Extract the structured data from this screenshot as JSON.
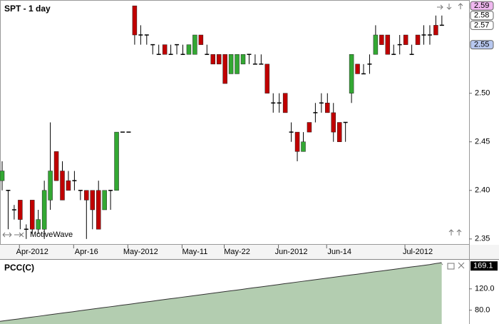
{
  "chart_data": [
    {
      "type": "candlestick",
      "title": "SPT - 1 day",
      "watermark": "MotiveWave",
      "categories": [
        null,
        null,
        null,
        null,
        null,
        "Apr-2012",
        null,
        null,
        null,
        null,
        null,
        null,
        null,
        null,
        "Apr-16",
        null,
        null,
        null,
        null,
        null,
        null,
        null,
        null,
        "May-2012",
        null,
        null,
        null,
        null,
        null,
        null,
        null,
        null,
        "May-11",
        null,
        null,
        null,
        null,
        null,
        null,
        "May-22",
        null,
        null,
        null,
        null,
        null,
        null,
        null,
        null,
        "Jun-2012",
        null,
        null,
        null,
        null,
        null,
        null,
        null,
        "Jun-14",
        null,
        null,
        null,
        null,
        null,
        null,
        null,
        null,
        null,
        null,
        null,
        null,
        "Jul-2012",
        null,
        null,
        null,
        null
      ],
      "open": [
        2.41,
        2.4,
        2.38,
        2.39,
        2.36,
        2.39,
        2.36,
        2.36,
        2.39,
        2.44,
        2.42,
        2.41,
        2.41,
        2.4,
        2.4,
        2.4,
        2.4,
        2.38,
        2.4,
        2.4,
        2.46,
        2.46,
        2.59,
        2.56,
        2.56,
        2.55,
        2.54,
        2.55,
        2.54,
        2.55,
        2.54,
        2.54,
        2.54,
        2.56,
        2.54,
        2.54,
        2.54,
        2.54,
        2.52,
        2.52,
        2.53,
        2.54,
        2.53,
        2.53,
        2.53,
        2.49,
        2.49,
        2.5,
        2.46,
        2.46,
        2.44,
        2.47,
        2.48,
        2.49,
        2.49,
        2.48,
        2.47,
        2.47,
        2.5,
        2.53,
        2.52,
        2.53,
        2.54,
        2.56,
        2.56,
        2.54,
        2.55,
        2.56,
        2.54,
        2.56,
        2.56,
        2.56,
        2.57,
        2.57
      ],
      "high": [
        2.43,
        2.4,
        2.385,
        2.39,
        2.365,
        2.39,
        2.38,
        2.41,
        2.47,
        2.44,
        2.43,
        2.42,
        2.42,
        2.4,
        2.4,
        2.4,
        2.41,
        2.4,
        2.4,
        2.46,
        2.46,
        2.46,
        2.59,
        2.57,
        2.56,
        2.55,
        2.55,
        2.55,
        2.55,
        2.55,
        2.55,
        2.55,
        2.56,
        2.56,
        2.55,
        2.54,
        2.54,
        2.54,
        2.54,
        2.54,
        2.54,
        2.54,
        2.54,
        2.54,
        2.53,
        2.5,
        2.5,
        2.5,
        2.47,
        2.46,
        2.46,
        2.47,
        2.49,
        2.5,
        2.5,
        2.49,
        2.47,
        2.47,
        2.54,
        2.53,
        2.53,
        2.54,
        2.57,
        2.56,
        2.56,
        2.55,
        2.56,
        2.56,
        2.55,
        2.56,
        2.57,
        2.57,
        2.58,
        2.58
      ],
      "low": [
        2.4,
        2.36,
        2.37,
        2.36,
        2.35,
        2.355,
        2.355,
        2.35,
        2.38,
        2.41,
        2.39,
        2.4,
        2.4,
        2.39,
        2.35,
        2.36,
        2.36,
        2.38,
        2.38,
        2.4,
        2.46,
        2.46,
        2.55,
        2.55,
        2.55,
        2.54,
        2.54,
        2.54,
        2.54,
        2.54,
        2.54,
        2.54,
        2.54,
        2.55,
        2.54,
        2.53,
        2.53,
        2.51,
        2.52,
        2.52,
        2.53,
        2.53,
        2.53,
        2.53,
        2.5,
        2.48,
        2.48,
        2.48,
        2.45,
        2.43,
        2.44,
        2.46,
        2.47,
        2.48,
        2.48,
        2.45,
        2.45,
        2.45,
        2.49,
        2.52,
        2.52,
        2.52,
        2.54,
        2.55,
        2.54,
        2.54,
        2.54,
        2.55,
        2.54,
        2.55,
        2.55,
        2.55,
        2.56,
        2.57
      ],
      "close": [
        2.42,
        2.4,
        2.38,
        2.37,
        2.36,
        2.36,
        2.37,
        2.4,
        2.42,
        2.41,
        2.39,
        2.4,
        2.41,
        2.4,
        2.39,
        2.38,
        2.36,
        2.4,
        2.4,
        2.46,
        2.46,
        2.46,
        2.56,
        2.56,
        2.56,
        2.55,
        2.54,
        2.54,
        2.54,
        2.55,
        2.54,
        2.55,
        2.56,
        2.55,
        2.54,
        2.53,
        2.53,
        2.51,
        2.54,
        2.54,
        2.54,
        2.54,
        2.53,
        2.53,
        2.5,
        2.49,
        2.49,
        2.48,
        2.46,
        2.44,
        2.45,
        2.46,
        2.48,
        2.49,
        2.48,
        2.46,
        2.45,
        2.47,
        2.54,
        2.52,
        2.52,
        2.53,
        2.56,
        2.55,
        2.54,
        2.54,
        2.55,
        2.55,
        2.54,
        2.55,
        2.56,
        2.56,
        2.56,
        2.57
      ],
      "up_color": "#33a833",
      "down_color": "#c00000",
      "ylim": [
        2.344,
        2.596
      ],
      "yticks": [
        2.35,
        {
          "value": 2.4,
          "label": "2.40"
        },
        2.45,
        {
          "value": 2.5,
          "label": "2.50"
        }
      ],
      "price_markers": [
        {
          "value": 2.59,
          "label": "2.59",
          "color": "#f0b8f0"
        },
        {
          "value": 2.58,
          "label": "2.58",
          "color": "#ffffff"
        },
        {
          "value": 2.57,
          "label": "2.57",
          "color": "#ffffff"
        },
        {
          "value": 2.55,
          "label": "2.55",
          "color": "#b8c8f0"
        }
      ]
    },
    {
      "type": "area",
      "title": "PCC(C)",
      "color": "#b3cdb0",
      "line_color": "#333333",
      "values": [
        59,
        60.5,
        62,
        63.4,
        65,
        66.6,
        68,
        69.5,
        71.1,
        72.6,
        74.1,
        75.6,
        77,
        78.6,
        80.1,
        81.7,
        83.2,
        84.6,
        86.1,
        87.6,
        89.2,
        90.6,
        92.1,
        93.7,
        95.2,
        96.6,
        98.2,
        99.7,
        101.2,
        102.6,
        104.2,
        105.7,
        107.2,
        108.6,
        110.1,
        111.7,
        113.2,
        114.6,
        116.2,
        117.6,
        119.1,
        120.7,
        122.2,
        123.6,
        125.1,
        126.6,
        128.1,
        129.7,
        131.1,
        132.7,
        134.2,
        135.6,
        137.1,
        138.6,
        140.2,
        141.6,
        143.1,
        144.7,
        146.2,
        147.6,
        149.1,
        150.7,
        152.2,
        153.6,
        155.1,
        156.6,
        158.1,
        159.7,
        161.2,
        162.6,
        164.1,
        165.6,
        167.6,
        169.1
      ],
      "ylim": [
        54,
        172
      ],
      "yticks": [
        {
          "value": 80,
          "label": "80.0"
        },
        {
          "value": 120,
          "label": "120.0"
        }
      ]
    }
  ]
}
